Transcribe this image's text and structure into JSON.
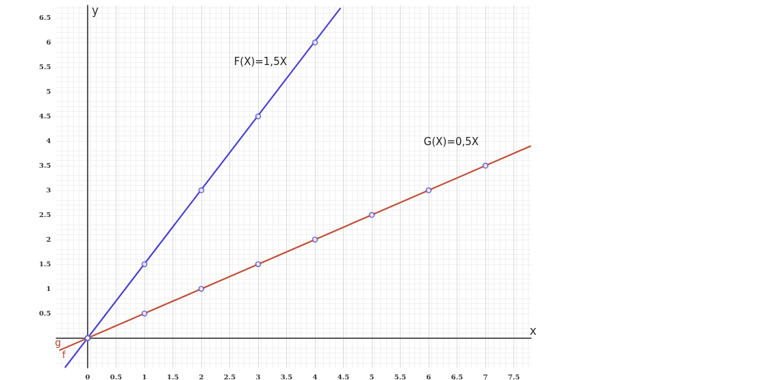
{
  "chart_data": {
    "type": "line",
    "xlabel": "x",
    "ylabel": "y",
    "xlim": [
      -0.55,
      7.8
    ],
    "ylim": [
      -0.6,
      6.75
    ],
    "xticks": [
      0,
      0.5,
      1,
      1.5,
      2,
      2.5,
      3,
      3.5,
      4,
      4.5,
      5,
      5.5,
      6,
      6.5,
      7,
      7.5
    ],
    "yticks": [
      0.5,
      1,
      1.5,
      2,
      2.5,
      3,
      3.5,
      4,
      4.5,
      5,
      5.5,
      6,
      6.5
    ],
    "grid": true,
    "legend": false,
    "series": [
      {
        "name": "F(X)=1,5X",
        "color": "#4a3fd0",
        "marker": "none",
        "x": [
          -0.4,
          4.45
        ],
        "values": [
          -0.6,
          6.7
        ]
      },
      {
        "name": "G(X)=0,5X",
        "color": "#c0523a",
        "marker": "none",
        "x": [
          -0.5,
          7.8
        ],
        "values": [
          -0.25,
          3.9
        ]
      },
      {
        "type": "scatter",
        "color": "#5a5ac8",
        "marker": "circle",
        "x": [
          0,
          1,
          2,
          3,
          4
        ],
        "values": [
          0,
          1.5,
          3,
          4.5,
          6
        ]
      },
      {
        "type": "scatter",
        "color": "#5a5ac8",
        "marker": "circle",
        "x": [
          0,
          1,
          2,
          3,
          4,
          5,
          6,
          7
        ],
        "values": [
          0,
          0.5,
          1,
          1.5,
          2,
          2.5,
          3,
          3.5
        ]
      }
    ],
    "annotations": [
      {
        "text": "g",
        "x": -0.4,
        "y": -0.2
      },
      {
        "text": "f",
        "x": -0.3,
        "y": -0.45
      }
    ]
  }
}
